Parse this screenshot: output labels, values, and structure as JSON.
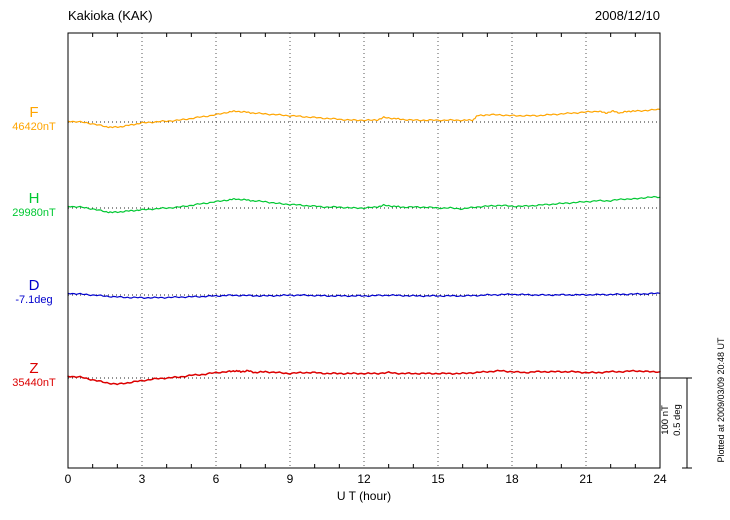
{
  "header": {
    "title": "Kakioka (KAK)",
    "date": "2008/12/10"
  },
  "axis": {
    "xlabel": "U T (hour)"
  },
  "scale_bar": {
    "top_label": "100 nT",
    "bottom_label": "0.5 deg"
  },
  "footer_note": "Plotted at 2009/03/09 20:48 UT",
  "chart_data": {
    "type": "line",
    "title": "Kakioka (KAK)",
    "subtitle": "2008/12/10",
    "xlabel": "U T (hour)",
    "x_range": [
      0,
      24
    ],
    "x_tick_values": [
      0,
      3,
      6,
      9,
      12,
      15,
      18,
      21,
      24
    ],
    "x_tick_labels": [
      "0",
      "3",
      "6",
      "9",
      "12",
      "15",
      "18",
      "21",
      "24"
    ],
    "grid": "vertical-dotted-every-3h",
    "legend_position": "left-of-each-trace",
    "scale_bar": {
      "nT_per_div": 100,
      "deg_per_div": 0.5
    },
    "series": [
      {
        "id": "F",
        "label": "F",
        "baseline_label": "46420nT",
        "baseline_value": 46420,
        "unit": "nT",
        "color": "#ffa500",
        "points": [
          [
            0,
            1
          ],
          [
            0.5,
            0
          ],
          [
            1,
            -2
          ],
          [
            1.5,
            -5
          ],
          [
            1.8,
            -6
          ],
          [
            2.2,
            -5
          ],
          [
            2.6,
            -3
          ],
          [
            3,
            -1
          ],
          [
            3.5,
            0
          ],
          [
            4,
            1
          ],
          [
            4.5,
            2
          ],
          [
            5,
            4
          ],
          [
            5.5,
            6
          ],
          [
            6,
            8
          ],
          [
            6.5,
            11
          ],
          [
            6.8,
            12
          ],
          [
            7.2,
            11
          ],
          [
            7.5,
            10
          ],
          [
            8,
            9
          ],
          [
            8.5,
            8
          ],
          [
            9,
            7
          ],
          [
            9.5,
            6
          ],
          [
            10,
            5
          ],
          [
            10.5,
            4
          ],
          [
            11,
            3
          ],
          [
            11.5,
            2
          ],
          [
            12,
            2
          ],
          [
            12.5,
            2
          ],
          [
            12.8,
            5
          ],
          [
            13.2,
            4
          ],
          [
            13.5,
            3
          ],
          [
            14,
            2
          ],
          [
            14.5,
            2
          ],
          [
            15,
            2
          ],
          [
            15.5,
            2
          ],
          [
            16,
            2
          ],
          [
            16.4,
            2
          ],
          [
            16.6,
            7
          ],
          [
            17,
            8
          ],
          [
            17.5,
            8
          ],
          [
            18,
            7
          ],
          [
            18.5,
            7
          ],
          [
            19,
            7
          ],
          [
            19.5,
            8
          ],
          [
            20,
            9
          ],
          [
            20.5,
            10
          ],
          [
            21,
            11
          ],
          [
            21.5,
            12
          ],
          [
            21.8,
            10
          ],
          [
            22.1,
            12
          ],
          [
            22.4,
            10
          ],
          [
            22.7,
            12
          ],
          [
            23,
            12
          ],
          [
            23.5,
            13
          ],
          [
            24,
            14
          ]
        ]
      },
      {
        "id": "H",
        "label": "H",
        "baseline_label": "29980nT",
        "baseline_value": 29980,
        "unit": "nT",
        "color": "#00c832",
        "points": [
          [
            0,
            2
          ],
          [
            0.5,
            1
          ],
          [
            1,
            -1
          ],
          [
            1.5,
            -4
          ],
          [
            1.8,
            -5
          ],
          [
            2.2,
            -4
          ],
          [
            2.6,
            -3
          ],
          [
            3,
            -2
          ],
          [
            3.5,
            -1
          ],
          [
            4,
            0
          ],
          [
            4.5,
            1
          ],
          [
            5,
            3
          ],
          [
            5.5,
            5
          ],
          [
            6,
            7
          ],
          [
            6.5,
            9
          ],
          [
            6.8,
            10
          ],
          [
            7.2,
            9
          ],
          [
            7.5,
            8
          ],
          [
            8,
            7
          ],
          [
            8.5,
            5
          ],
          [
            9,
            4
          ],
          [
            9.5,
            3
          ],
          [
            10,
            2
          ],
          [
            10.5,
            1
          ],
          [
            11,
            1
          ],
          [
            11.5,
            0
          ],
          [
            12,
            0
          ],
          [
            12.5,
            1
          ],
          [
            12.8,
            3
          ],
          [
            13.2,
            2
          ],
          [
            13.5,
            1
          ],
          [
            14,
            1
          ],
          [
            14.5,
            1
          ],
          [
            15,
            0
          ],
          [
            15.5,
            0
          ],
          [
            16,
            -1
          ],
          [
            16.5,
            1
          ],
          [
            17,
            2
          ],
          [
            17.5,
            3
          ],
          [
            18,
            2
          ],
          [
            18.5,
            2
          ],
          [
            19,
            3
          ],
          [
            19.5,
            4
          ],
          [
            20,
            5
          ],
          [
            20.5,
            6
          ],
          [
            21,
            7
          ],
          [
            21.5,
            8
          ],
          [
            22,
            8
          ],
          [
            22.5,
            10
          ],
          [
            23,
            10
          ],
          [
            23.5,
            12
          ],
          [
            24,
            12
          ]
        ]
      },
      {
        "id": "D",
        "label": "D",
        "baseline_label": "-7.1deg",
        "baseline_value": -7.1,
        "unit": "deg",
        "color": "#0000cd",
        "points": [
          [
            0,
            0.01
          ],
          [
            0.5,
            0.005
          ],
          [
            1,
            0
          ],
          [
            1.5,
            -0.006
          ],
          [
            2,
            -0.011
          ],
          [
            2.5,
            -0.014
          ],
          [
            3,
            -0.015
          ],
          [
            3.5,
            -0.015
          ],
          [
            4,
            -0.014
          ],
          [
            4.5,
            -0.012
          ],
          [
            5,
            -0.01
          ],
          [
            5.5,
            -0.008
          ],
          [
            6,
            -0.005
          ],
          [
            6.5,
            -0.002
          ],
          [
            7,
            -0.002
          ],
          [
            7.5,
            -0.004
          ],
          [
            8,
            -0.005
          ],
          [
            8.5,
            -0.003
          ],
          [
            9,
            -0.001
          ],
          [
            9.5,
            -0.001
          ],
          [
            10,
            -0.003
          ],
          [
            10.5,
            -0.005
          ],
          [
            11,
            -0.005
          ],
          [
            11.5,
            -0.005
          ],
          [
            12,
            -0.005
          ],
          [
            12.5,
            -0.003
          ],
          [
            13,
            -0.001
          ],
          [
            13.5,
            -0.003
          ],
          [
            14,
            -0.005
          ],
          [
            14.5,
            -0.005
          ],
          [
            15,
            -0.005
          ],
          [
            15.5,
            -0.005
          ],
          [
            16,
            -0.005
          ],
          [
            16.5,
            -0.003
          ],
          [
            17,
            0
          ],
          [
            17.5,
            0.002
          ],
          [
            18,
            0.004
          ],
          [
            18.5,
            0.002
          ],
          [
            19,
            0
          ],
          [
            19.5,
            0
          ],
          [
            20,
            0.001
          ],
          [
            20.5,
            0.001
          ],
          [
            21,
            0.001
          ],
          [
            21.5,
            0.002
          ],
          [
            22,
            0.003
          ],
          [
            22.5,
            0.004
          ],
          [
            23,
            0.005
          ],
          [
            23.5,
            0.007
          ],
          [
            24,
            0.009
          ]
        ]
      },
      {
        "id": "Z",
        "label": "Z",
        "baseline_label": "35440nT",
        "baseline_value": 35440,
        "unit": "nT",
        "color": "#dc0000",
        "points": [
          [
            0,
            2
          ],
          [
            0.5,
            1
          ],
          [
            1,
            -2
          ],
          [
            1.5,
            -5
          ],
          [
            2,
            -7
          ],
          [
            2.5,
            -5
          ],
          [
            3,
            -3
          ],
          [
            3.5,
            -1
          ],
          [
            4,
            0
          ],
          [
            4.5,
            1
          ],
          [
            5,
            3
          ],
          [
            5.5,
            4
          ],
          [
            6,
            6
          ],
          [
            6.5,
            7
          ],
          [
            6.8,
            8
          ],
          [
            7,
            7
          ],
          [
            7.3,
            8
          ],
          [
            7.6,
            6
          ],
          [
            8,
            7
          ],
          [
            8.5,
            6
          ],
          [
            9,
            5
          ],
          [
            9.5,
            6
          ],
          [
            10,
            6
          ],
          [
            10.5,
            5
          ],
          [
            11,
            5
          ],
          [
            11.5,
            5
          ],
          [
            12,
            5
          ],
          [
            12.5,
            5
          ],
          [
            13,
            6
          ],
          [
            13.5,
            5
          ],
          [
            14,
            5
          ],
          [
            14.5,
            5
          ],
          [
            15,
            5
          ],
          [
            15.5,
            5
          ],
          [
            16,
            5
          ],
          [
            16.5,
            6
          ],
          [
            17,
            7
          ],
          [
            17.5,
            8
          ],
          [
            18,
            7
          ],
          [
            18.5,
            6
          ],
          [
            19,
            7
          ],
          [
            19.5,
            7
          ],
          [
            20,
            7
          ],
          [
            20.5,
            7
          ],
          [
            21,
            6
          ],
          [
            21.5,
            6
          ],
          [
            22,
            7
          ],
          [
            22.5,
            7
          ],
          [
            23,
            8
          ],
          [
            23.5,
            7
          ],
          [
            24,
            7
          ]
        ]
      }
    ]
  }
}
